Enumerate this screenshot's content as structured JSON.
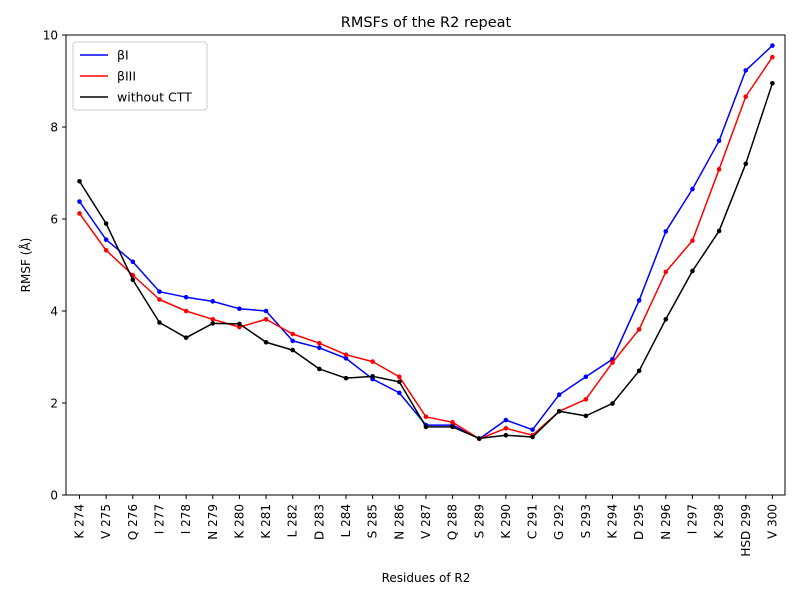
{
  "chart_data": {
    "type": "line",
    "title": "RMSFs of the R2 repeat",
    "xlabel": "Residues of R2",
    "ylabel": "RMSF (Å)",
    "ylim": [
      0,
      10
    ],
    "yticks": [
      "0",
      "2",
      "4",
      "6",
      "8",
      "10"
    ],
    "grid": false,
    "legend_position": "top-left",
    "categories": [
      "K 274",
      "V 275",
      "Q 276",
      "I 277",
      "I 278",
      "N 279",
      "K 280",
      "K 281",
      "L 282",
      "D 283",
      "L 284",
      "S 285",
      "N 286",
      "V 287",
      "Q 288",
      "S 289",
      "K 290",
      "C 291",
      "G 292",
      "S 293",
      "K 294",
      "D 295",
      "N 296",
      "I 297",
      "K 298",
      "HSD 299",
      "V 300"
    ],
    "highlighted_categories": [
      "S 285",
      "S 289",
      "S 293"
    ],
    "highlight_color": "#008000",
    "series": [
      {
        "name": "βI",
        "color": "#0000ff",
        "values": [
          6.38,
          5.55,
          5.07,
          4.42,
          4.3,
          4.21,
          4.05,
          4.0,
          3.35,
          3.2,
          2.97,
          2.52,
          2.22,
          1.52,
          1.52,
          1.22,
          1.63,
          1.42,
          2.18,
          2.57,
          2.95,
          4.23,
          5.73,
          6.65,
          7.7,
          9.23,
          9.77
        ]
      },
      {
        "name": "βIII",
        "color": "#ff0000",
        "values": [
          6.12,
          5.32,
          4.78,
          4.25,
          4.0,
          3.82,
          3.65,
          3.82,
          3.5,
          3.3,
          3.05,
          2.9,
          2.57,
          1.7,
          1.58,
          1.22,
          1.45,
          1.3,
          1.82,
          2.08,
          2.88,
          3.6,
          4.85,
          5.53,
          7.08,
          8.66,
          9.52
        ]
      },
      {
        "name": "without CTT",
        "color": "#000000",
        "values": [
          6.82,
          5.9,
          4.68,
          3.75,
          3.42,
          3.73,
          3.72,
          3.32,
          3.15,
          2.74,
          2.54,
          2.58,
          2.46,
          1.48,
          1.48,
          1.23,
          1.3,
          1.26,
          1.82,
          1.72,
          1.99,
          2.7,
          3.82,
          4.87,
          5.74,
          7.2,
          8.95
        ]
      }
    ]
  }
}
